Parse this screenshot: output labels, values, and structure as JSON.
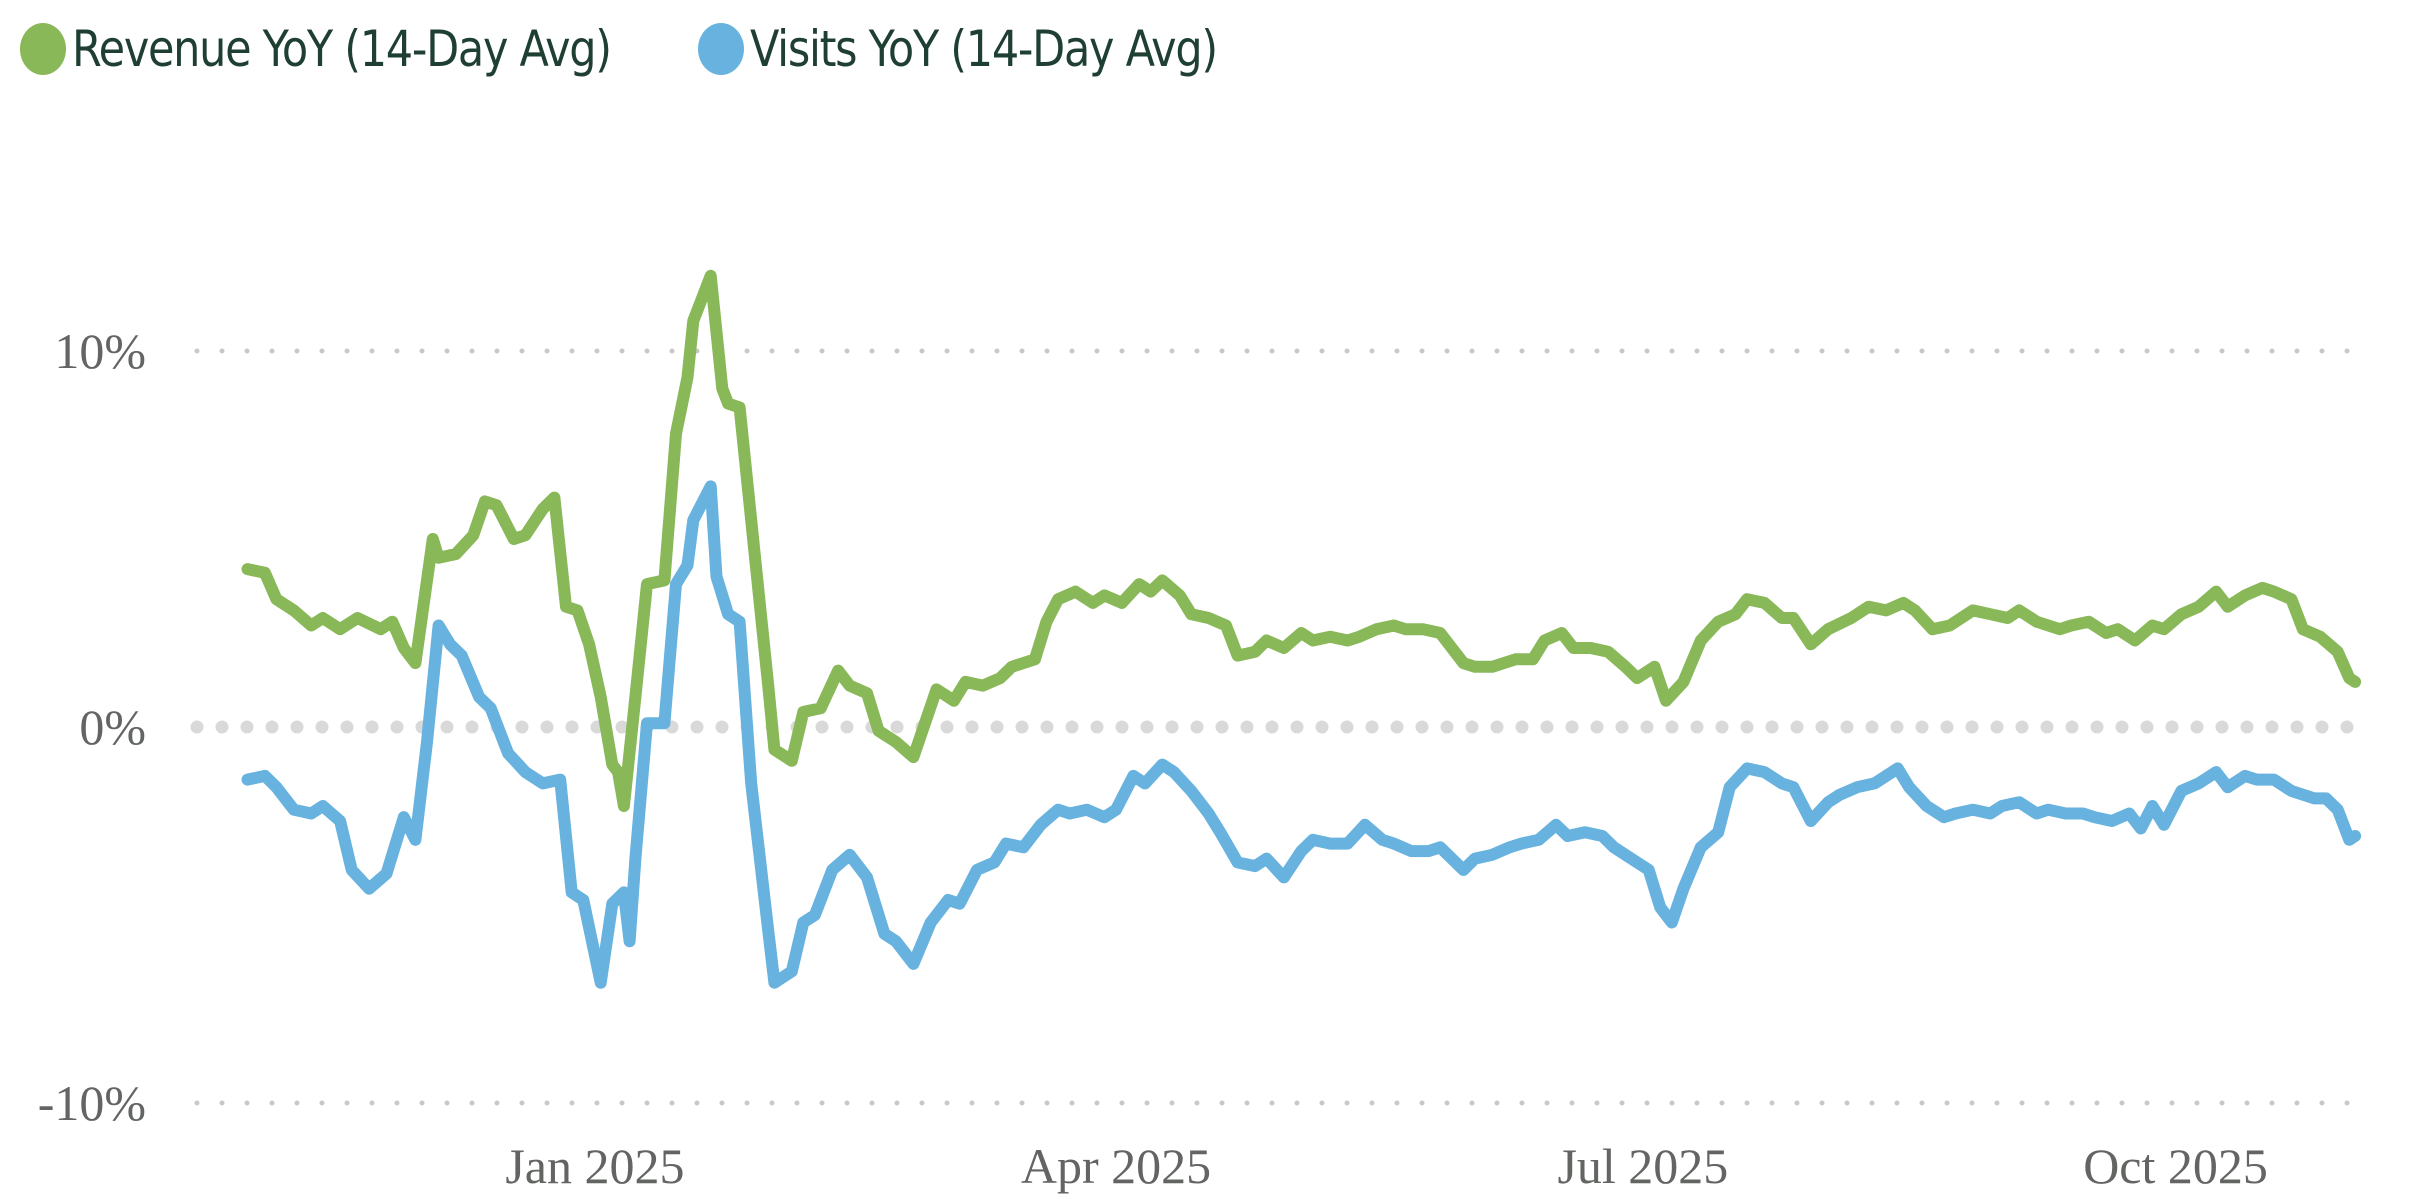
{
  "legend": {
    "items": [
      {
        "label": "Revenue YoY (14-Day Avg)",
        "color": "#88B858"
      },
      {
        "label": "Visits YoY (14-Day Avg)",
        "color": "#67B2DE"
      }
    ]
  },
  "axes": {
    "y_ticks": [
      {
        "label": "10%",
        "value": 10
      },
      {
        "label": "0%",
        "value": 0
      },
      {
        "label": "-10%",
        "value": -10
      }
    ],
    "x_ticks": [
      {
        "label": "Jan 2025",
        "day": 60
      },
      {
        "label": "Apr 2025",
        "day": 150
      },
      {
        "label": "Jul 2025",
        "day": 241
      },
      {
        "label": "Oct 2025",
        "day": 333
      }
    ],
    "gridline_color": "#c8c8c8"
  },
  "chart_data": {
    "type": "line",
    "title": "",
    "xlabel": "",
    "ylabel": "",
    "x_start_date": "2024-11-02",
    "x_unit": "days since x_start_date",
    "ylim": [
      -10,
      12.5
    ],
    "y_format": "percent",
    "grid": "horizontal dotted at -10%, 0%, 10%",
    "legend_position": "top-left",
    "x_tick_labels": [
      "Jan 2025",
      "Apr 2025",
      "Jul 2025",
      "Oct 2025"
    ],
    "y_tick_labels": [
      "-10%",
      "0%",
      "10%"
    ],
    "series": [
      {
        "name": "Revenue YoY (14-Day Avg)",
        "color": "#88B858",
        "x": [
          0,
          3,
          5,
          8,
          11,
          13,
          16,
          19,
          23,
          25,
          27,
          29,
          32,
          33,
          36,
          39,
          41,
          43,
          46,
          48,
          51,
          53,
          55,
          57,
          59,
          61,
          63,
          64,
          65,
          67,
          69,
          72,
          74,
          76,
          77,
          80,
          82,
          83,
          85,
          88,
          90,
          91,
          94,
          96,
          99,
          102,
          104,
          107,
          109,
          112,
          115,
          119,
          122,
          124,
          127,
          130,
          132,
          136,
          138,
          140,
          143,
          146,
          148,
          151,
          154,
          156,
          158,
          161,
          163,
          166,
          169,
          171,
          174,
          176,
          179,
          182,
          184,
          187,
          190,
          192,
          195,
          198,
          200,
          203,
          206,
          210,
          212,
          215,
          219,
          222,
          224,
          227,
          229,
          232,
          235,
          238,
          240,
          243,
          245,
          248,
          251,
          254,
          257,
          259,
          262,
          265,
          267,
          270,
          273,
          277,
          280,
          283,
          286,
          288,
          291,
          294,
          298,
          301,
          304,
          306,
          309,
          313,
          315,
          318,
          321,
          323,
          326,
          329,
          331,
          334,
          337,
          340,
          342,
          345,
          348,
          350,
          353,
          355,
          358,
          361,
          363,
          364
        ],
        "values": [
          4.2,
          4.1,
          3.4,
          3.1,
          2.7,
          2.9,
          2.6,
          2.9,
          2.6,
          2.8,
          2.1,
          1.7,
          5.0,
          4.5,
          4.6,
          5.1,
          6.0,
          5.9,
          5.0,
          5.1,
          5.8,
          6.1,
          3.2,
          3.1,
          2.2,
          0.8,
          -1.0,
          -1.2,
          -2.1,
          0.8,
          3.8,
          3.9,
          7.8,
          9.3,
          10.8,
          12.0,
          9.0,
          8.6,
          8.5,
          4.0,
          1.0,
          -0.6,
          -0.9,
          0.4,
          0.5,
          1.5,
          1.1,
          0.9,
          -0.1,
          -0.4,
          -0.8,
          1.0,
          0.7,
          1.2,
          1.1,
          1.3,
          1.6,
          1.8,
          2.8,
          3.4,
          3.6,
          3.3,
          3.5,
          3.3,
          3.8,
          3.6,
          3.9,
          3.5,
          3.0,
          2.9,
          2.7,
          1.9,
          2.0,
          2.3,
          2.1,
          2.5,
          2.3,
          2.4,
          2.3,
          2.4,
          2.6,
          2.7,
          2.6,
          2.6,
          2.5,
          1.7,
          1.6,
          1.6,
          1.8,
          1.8,
          2.3,
          2.5,
          2.1,
          2.1,
          2.0,
          1.6,
          1.3,
          1.6,
          0.7,
          1.2,
          2.3,
          2.8,
          3.0,
          3.4,
          3.3,
          2.9,
          2.9,
          2.2,
          2.6,
          2.9,
          3.2,
          3.1,
          3.3,
          3.1,
          2.6,
          2.7,
          3.1,
          3.0,
          2.9,
          3.1,
          2.8,
          2.6,
          2.7,
          2.8,
          2.5,
          2.6,
          2.3,
          2.7,
          2.6,
          3.0,
          3.2,
          3.6,
          3.2,
          3.5,
          3.7,
          3.6,
          3.4,
          2.6,
          2.4,
          2.0,
          1.3,
          1.2
        ]
      },
      {
        "name": "Visits YoY (14-Day Avg)",
        "color": "#67B2DE",
        "x": [
          0,
          3,
          5,
          8,
          11,
          13,
          16,
          18,
          21,
          24,
          27,
          29,
          31,
          33,
          35,
          37,
          40,
          42,
          45,
          48,
          51,
          54,
          56,
          58,
          61,
          63,
          65,
          66,
          67,
          69,
          72,
          74,
          76,
          77,
          80,
          81,
          83,
          85,
          87,
          90,
          91,
          94,
          96,
          98,
          101,
          104,
          107,
          110,
          112,
          115,
          118,
          121,
          123,
          126,
          129,
          131,
          134,
          137,
          140,
          142,
          145,
          148,
          150,
          153,
          155,
          158,
          160,
          163,
          166,
          168,
          171,
          174,
          176,
          179,
          182,
          184,
          187,
          190,
          193,
          196,
          198,
          201,
          204,
          206,
          210,
          212,
          215,
          218,
          220,
          223,
          226,
          228,
          231,
          234,
          236,
          239,
          242,
          244,
          246,
          248,
          251,
          254,
          256,
          259,
          262,
          265,
          267,
          270,
          273,
          275,
          278,
          281,
          285,
          287,
          290,
          293,
          295,
          298,
          301,
          303,
          306,
          309,
          311,
          314,
          317,
          319,
          322,
          325,
          327,
          329,
          331,
          334,
          337,
          340,
          342,
          345,
          347,
          350,
          353,
          357,
          359,
          361,
          363,
          364
        ],
        "values": [
          -1.4,
          -1.3,
          -1.6,
          -2.2,
          -2.3,
          -2.1,
          -2.5,
          -3.8,
          -4.3,
          -3.9,
          -2.4,
          -3.0,
          -0.4,
          2.7,
          2.2,
          1.9,
          0.8,
          0.5,
          -0.7,
          -1.2,
          -1.5,
          -1.4,
          -4.4,
          -4.6,
          -6.8,
          -4.7,
          -4.4,
          -5.7,
          -3.5,
          0.1,
          0.1,
          3.8,
          4.3,
          5.5,
          6.4,
          4.0,
          3.0,
          2.8,
          -1.5,
          -5.5,
          -6.8,
          -6.5,
          -5.2,
          -5.0,
          -3.8,
          -3.4,
          -4.0,
          -5.5,
          -5.7,
          -6.3,
          -5.2,
          -4.6,
          -4.7,
          -3.8,
          -3.6,
          -3.1,
          -3.2,
          -2.6,
          -2.2,
          -2.3,
          -2.2,
          -2.4,
          -2.2,
          -1.3,
          -1.5,
          -1.0,
          -1.2,
          -1.7,
          -2.3,
          -2.8,
          -3.6,
          -3.7,
          -3.5,
          -4.0,
          -3.3,
          -3.0,
          -3.1,
          -3.1,
          -2.6,
          -3.0,
          -3.1,
          -3.3,
          -3.3,
          -3.2,
          -3.8,
          -3.5,
          -3.4,
          -3.2,
          -3.1,
          -3.0,
          -2.6,
          -2.9,
          -2.8,
          -2.9,
          -3.2,
          -3.5,
          -3.8,
          -4.8,
          -5.2,
          -4.3,
          -3.2,
          -2.8,
          -1.6,
          -1.1,
          -1.2,
          -1.5,
          -1.6,
          -2.5,
          -2.0,
          -1.8,
          -1.6,
          -1.5,
          -1.1,
          -1.6,
          -2.1,
          -2.4,
          -2.3,
          -2.2,
          -2.3,
          -2.1,
          -2.0,
          -2.3,
          -2.2,
          -2.3,
          -2.3,
          -2.4,
          -2.5,
          -2.3,
          -2.7,
          -2.1,
          -2.6,
          -1.7,
          -1.5,
          -1.2,
          -1.6,
          -1.3,
          -1.4,
          -1.4,
          -1.7,
          -1.9,
          -1.9,
          -2.2,
          -3.0,
          -2.9
        ]
      }
    ]
  }
}
